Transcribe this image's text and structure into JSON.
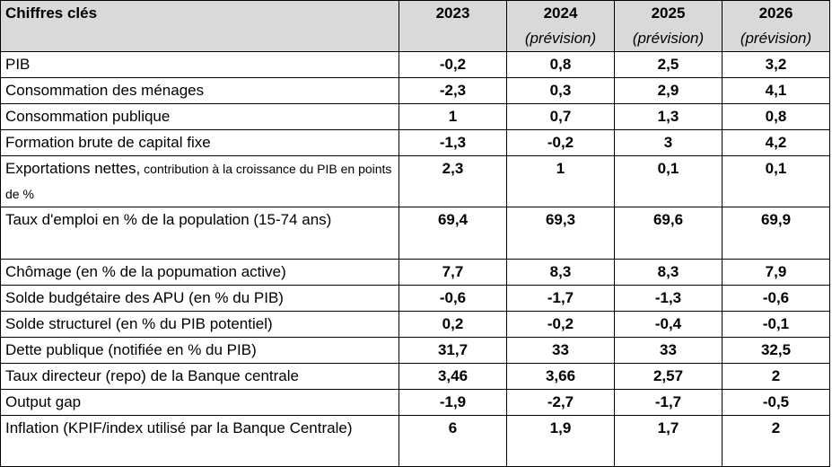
{
  "table": {
    "header": {
      "label": "Chiffres clés",
      "columns": [
        {
          "year": "2023",
          "sub": ""
        },
        {
          "year": "2024",
          "sub": "(prévision)"
        },
        {
          "year": "2025",
          "sub": "(prévision)"
        },
        {
          "year": "2026",
          "sub": "(prévision)"
        }
      ]
    },
    "rows": [
      {
        "label": "PIB",
        "note": "",
        "values": [
          "-0,2",
          "0,8",
          "2,5",
          "3,2"
        ]
      },
      {
        "label": "Consommation des ménages",
        "note": "",
        "values": [
          "-2,3",
          "0,3",
          "2,9",
          "4,1"
        ]
      },
      {
        "label": "Consommation publique",
        "note": "",
        "values": [
          "1",
          "0,7",
          "1,3",
          "0,8"
        ]
      },
      {
        "label": "Formation brute de capital fixe",
        "note": "",
        "values": [
          "-1,3",
          "-0,2",
          "3",
          "4,2"
        ]
      },
      {
        "label": "Exportations nettes,",
        "note": " contribution à la croissance du PIB en points de %",
        "values": [
          "2,3",
          "1",
          "0,1",
          "0,1"
        ]
      },
      {
        "label": "Taux d'emploi en % de la population (15-74 ans)",
        "note": "",
        "values": [
          "69,4",
          "69,3",
          "69,6",
          "69,9"
        ]
      },
      {
        "label": "Chômage (en % de la popumation active)",
        "note": "",
        "values": [
          "7,7",
          "8,3",
          "8,3",
          "7,9"
        ]
      },
      {
        "label": "Solde budgétaire des APU (en % du PIB)",
        "note": "",
        "values": [
          "-0,6",
          "-1,7",
          "-1,3",
          "-0,6"
        ]
      },
      {
        "label": "Solde structurel (en % du PIB potentiel)",
        "note": "",
        "values": [
          "0,2",
          "-0,2",
          "-0,4",
          "-0,1"
        ]
      },
      {
        "label": "Dette publique (notifiée en % du PIB)",
        "note": "",
        "values": [
          "31,7",
          "33",
          "33",
          "32,5"
        ]
      },
      {
        "label": "Taux directeur (repo) de la Banque centrale",
        "note": "",
        "values": [
          "3,46",
          "3,66",
          "2,57",
          "2"
        ]
      },
      {
        "label": "Output gap",
        "note": "",
        "values": [
          "-1,9",
          "-2,7",
          "-1,7",
          "-0,5"
        ]
      },
      {
        "label": "Inflation (KPIF/index utilisé par la Banque Centrale)",
        "note": "",
        "values": [
          "6",
          "1,9",
          "1,7",
          "2"
        ]
      }
    ]
  }
}
